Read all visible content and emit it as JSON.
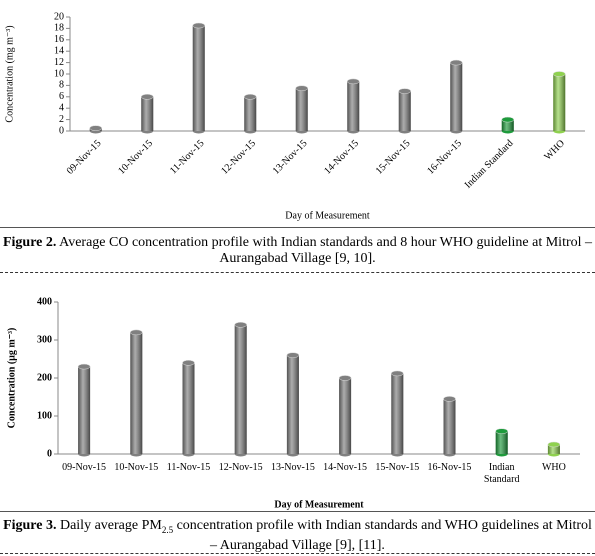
{
  "figure2": {
    "chart_data": {
      "type": "bar",
      "y_label": "Concentration (mg m⁻³)",
      "x_label": "Day of Measurement",
      "categories": [
        "09-Nov-15",
        "10-Nov-15",
        "11-Nov-15",
        "12-Nov-15",
        "13-Nov-15",
        "14-Nov-15",
        "15-Nov-15",
        "16-Nov-15",
        "Indian Standard",
        "WHO"
      ],
      "values": [
        0.5,
        6,
        18.5,
        6,
        7.5,
        8.7,
        7,
        12,
        2,
        10
      ],
      "colors": [
        "#808080",
        "#808080",
        "#808080",
        "#808080",
        "#808080",
        "#808080",
        "#808080",
        "#808080",
        "#1e9b3c",
        "#8fd14f"
      ],
      "ylim": [
        0,
        20
      ],
      "yticks": [
        0,
        2,
        4,
        6,
        8,
        10,
        12,
        14,
        16,
        18,
        20
      ]
    },
    "caption": {
      "label": "Figure 2.",
      "text": " Average CO concentration profile with Indian standards and 8 hour WHO guideline at Mitrol – Aurangabad Village [9, 10]."
    }
  },
  "figure3": {
    "chart_data": {
      "type": "bar",
      "y_label": "Concentration (µg m⁻³)",
      "x_label": "Day of Measurement",
      "categories": [
        "09-Nov-15",
        "10-Nov-15",
        "11-Nov-15",
        "12-Nov-15",
        "13-Nov-15",
        "14-Nov-15",
        "15-Nov-15",
        "16-Nov-15",
        "Indian Standard",
        "WHO"
      ],
      "values": [
        230,
        320,
        240,
        340,
        260,
        200,
        212,
        145,
        60,
        25
      ],
      "colors": [
        "#808080",
        "#808080",
        "#808080",
        "#808080",
        "#808080",
        "#808080",
        "#808080",
        "#808080",
        "#1e9b3c",
        "#8fd14f"
      ],
      "ylim": [
        0,
        400
      ],
      "yticks": [
        0,
        100,
        200,
        300,
        400
      ]
    },
    "caption": {
      "label": "Figure 3.",
      "text_before": " Daily average PM",
      "subscript": "2.5",
      "text_after": " concentration profile with Indian standards and WHO guidelines at Mitrol – Aurangabad Village [9], [11]."
    }
  }
}
